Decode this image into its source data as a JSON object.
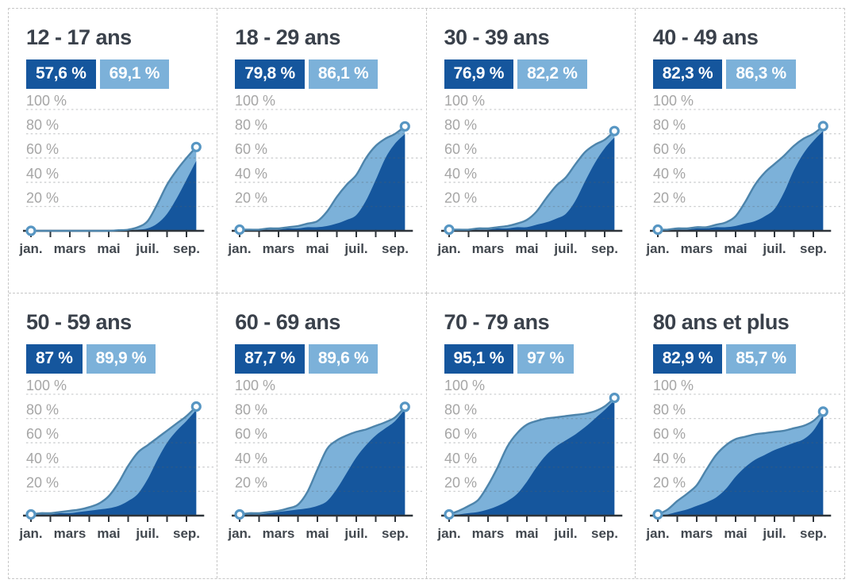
{
  "theme": {
    "dark_blue": "#15569d",
    "light_blue": "#7cb1d9",
    "light_line": "#4d84ab",
    "marker_ring": "#5796c3",
    "marker_fill": "#ffffff",
    "grid_line": "rgba(90,95,100,0.30)",
    "axis_line": "#2f353b",
    "y_label_color": "#a6a6a6",
    "x_label_color": "#42484f",
    "title_color": "#3a414b",
    "border_dash": "#c7c7c7"
  },
  "axis": {
    "y_ticks": [
      {
        "value": 100,
        "label": "100 %"
      },
      {
        "value": 80,
        "label": "80 %"
      },
      {
        "value": 60,
        "label": "60 %"
      },
      {
        "value": 40,
        "label": "40 %"
      },
      {
        "value": 20,
        "label": "20 %"
      }
    ],
    "x_ticks": [
      {
        "month": 0,
        "label": "jan."
      },
      {
        "month": 2,
        "label": "mars"
      },
      {
        "month": 4,
        "label": "mai"
      },
      {
        "month": 6,
        "label": "juil."
      },
      {
        "month": 8,
        "label": "sep."
      }
    ],
    "minor_tick_months": [
      0,
      1,
      2,
      3,
      4,
      5,
      6,
      7,
      8
    ]
  },
  "panels": [
    {
      "title": "12 - 17 ans",
      "badge_dark": "57,6 %",
      "badge_light": "69,1 %"
    },
    {
      "title": "18 - 29 ans",
      "badge_dark": "79,8 %",
      "badge_light": "86,1 %"
    },
    {
      "title": "30 - 39 ans",
      "badge_dark": "76,9 %",
      "badge_light": "82,2 %"
    },
    {
      "title": "40 - 49 ans",
      "badge_dark": "82,3 %",
      "badge_light": "86,3 %"
    },
    {
      "title": "50 - 59 ans",
      "badge_dark": "87 %",
      "badge_light": "89,9 %"
    },
    {
      "title": "60 - 69 ans",
      "badge_dark": "87,7 %",
      "badge_light": "89,6 %"
    },
    {
      "title": "70 - 79 ans",
      "badge_dark": "95,1 %",
      "badge_light": "97 %"
    },
    {
      "title": "80 ans et plus",
      "badge_dark": "82,9 %",
      "badge_light": "85,7 %"
    }
  ],
  "chart_data": [
    {
      "type": "area",
      "title": "12 - 17 ans",
      "ylim": [
        0,
        100
      ],
      "x_axis": "months jan.–sep., half-month steps",
      "x": [
        0,
        0.5,
        1,
        1.5,
        2,
        2.5,
        3,
        3.5,
        4,
        4.5,
        5,
        5.5,
        6,
        6.5,
        7,
        7.5,
        8,
        8.5
      ],
      "series": [
        {
          "name": "light-blue-area",
          "final_label": "69,1 %",
          "values": [
            0,
            0,
            0,
            0,
            0,
            0,
            0,
            0,
            0,
            0.5,
            1,
            3,
            8,
            22,
            38,
            50,
            60,
            69.1
          ]
        },
        {
          "name": "dark-blue-area",
          "final_label": "57,6 %",
          "values": [
            0,
            0,
            0,
            0,
            0,
            0,
            0,
            0,
            0,
            0,
            0,
            1,
            2,
            6,
            14,
            27,
            42,
            57.6
          ]
        }
      ]
    },
    {
      "type": "area",
      "title": "18 - 29 ans",
      "ylim": [
        0,
        100
      ],
      "x_axis": "months jan.–sep., half-month steps",
      "x": [
        0,
        0.5,
        1,
        1.5,
        2,
        2.5,
        3,
        3.5,
        4,
        4.5,
        5,
        5.5,
        6,
        6.5,
        7,
        7.5,
        8,
        8.5
      ],
      "series": [
        {
          "name": "light-blue-area",
          "final_label": "86,1 %",
          "values": [
            1,
            1,
            1,
            2,
            2,
            3,
            4,
            6,
            8,
            16,
            28,
            38,
            46,
            60,
            70,
            76,
            80,
            86.1
          ]
        },
        {
          "name": "dark-blue-area",
          "final_label": "79,8 %",
          "values": [
            0,
            0,
            1,
            1,
            1,
            2,
            2,
            3,
            3,
            4,
            6,
            9,
            13,
            25,
            42,
            60,
            72,
            79.8
          ]
        }
      ]
    },
    {
      "type": "area",
      "title": "30 - 39 ans",
      "ylim": [
        0,
        100
      ],
      "x_axis": "months jan.–sep., half-month steps",
      "x": [
        0,
        0.5,
        1,
        1.5,
        2,
        2.5,
        3,
        3.5,
        4,
        4.5,
        5,
        5.5,
        6,
        6.5,
        7,
        7.5,
        8,
        8.5
      ],
      "series": [
        {
          "name": "light-blue-area",
          "final_label": "82,2 %",
          "values": [
            1,
            1,
            1,
            2,
            2,
            3,
            4,
            6,
            9,
            16,
            27,
            37,
            44,
            55,
            65,
            71,
            75,
            82.2
          ]
        },
        {
          "name": "dark-blue-area",
          "final_label": "76,9 %",
          "values": [
            0,
            0,
            1,
            1,
            1,
            2,
            2,
            3,
            3,
            5,
            7,
            10,
            14,
            25,
            41,
            56,
            68,
            76.9
          ]
        }
      ]
    },
    {
      "type": "area",
      "title": "40 - 49 ans",
      "ylim": [
        0,
        100
      ],
      "x_axis": "months jan.–sep., half-month steps",
      "x": [
        0,
        0.5,
        1,
        1.5,
        2,
        2.5,
        3,
        3.5,
        4,
        4.5,
        5,
        5.5,
        6,
        6.5,
        7,
        7.5,
        8,
        8.5
      ],
      "series": [
        {
          "name": "light-blue-area",
          "final_label": "86,3 %",
          "values": [
            1,
            1,
            2,
            2,
            3,
            3,
            5,
            7,
            12,
            24,
            38,
            48,
            55,
            62,
            70,
            76,
            80,
            86.3
          ]
        },
        {
          "name": "dark-blue-area",
          "final_label": "82,3 %",
          "values": [
            0,
            0,
            1,
            1,
            2,
            2,
            3,
            3,
            4,
            6,
            8,
            12,
            18,
            32,
            50,
            64,
            74,
            82.3
          ]
        }
      ]
    },
    {
      "type": "area",
      "title": "50 - 59 ans",
      "ylim": [
        0,
        100
      ],
      "x_axis": "months jan.–sep., half-month steps",
      "x": [
        0,
        0.5,
        1,
        1.5,
        2,
        2.5,
        3,
        3.5,
        4,
        4.5,
        5,
        5.5,
        6,
        6.5,
        7,
        7.5,
        8,
        8.5
      ],
      "series": [
        {
          "name": "light-blue-area",
          "final_label": "89,9 %",
          "values": [
            1,
            2,
            2,
            3,
            4,
            5,
            7,
            10,
            16,
            27,
            41,
            52,
            58,
            64,
            70,
            76,
            82,
            89.9
          ]
        },
        {
          "name": "dark-blue-area",
          "final_label": "87 %",
          "values": [
            0,
            1,
            1,
            2,
            2,
            3,
            4,
            5,
            6,
            8,
            12,
            18,
            30,
            46,
            60,
            70,
            78,
            87
          ]
        }
      ]
    },
    {
      "type": "area",
      "title": "60 - 69 ans",
      "ylim": [
        0,
        100
      ],
      "x_axis": "months jan.–sep., half-month steps",
      "x": [
        0,
        0.5,
        1,
        1.5,
        2,
        2.5,
        3,
        3.5,
        4,
        4.5,
        5,
        5.5,
        6,
        6.5,
        7,
        7.5,
        8,
        8.5
      ],
      "series": [
        {
          "name": "light-blue-area",
          "final_label": "89,6 %",
          "values": [
            1,
            2,
            2,
            3,
            4,
            6,
            9,
            20,
            38,
            55,
            62,
            66,
            69,
            71,
            74,
            77,
            81,
            89.6
          ]
        },
        {
          "name": "dark-blue-area",
          "final_label": "87,7 %",
          "values": [
            0,
            1,
            1,
            2,
            3,
            4,
            5,
            6,
            8,
            12,
            22,
            35,
            48,
            58,
            66,
            72,
            78,
            87.7
          ]
        }
      ]
    },
    {
      "type": "area",
      "title": "70 - 79 ans",
      "ylim": [
        0,
        100
      ],
      "x_axis": "months jan.–sep., half-month steps",
      "x": [
        0,
        0.5,
        1,
        1.5,
        2,
        2.5,
        3,
        3.5,
        4,
        4.5,
        5,
        5.5,
        6,
        6.5,
        7,
        7.5,
        8,
        8.5
      ],
      "series": [
        {
          "name": "light-blue-area",
          "final_label": "97 %",
          "values": [
            1,
            4,
            8,
            13,
            25,
            40,
            57,
            68,
            75,
            78,
            80,
            81,
            82,
            83,
            84,
            86,
            90,
            97
          ]
        },
        {
          "name": "dark-blue-area",
          "final_label": "95,1 %",
          "values": [
            0,
            1,
            2,
            3,
            5,
            8,
            12,
            18,
            28,
            40,
            50,
            57,
            62,
            67,
            73,
            80,
            87,
            95.1
          ]
        }
      ]
    },
    {
      "type": "area",
      "title": "80 ans et plus",
      "ylim": [
        0,
        100
      ],
      "x_axis": "months jan.–sep., half-month steps",
      "x": [
        0,
        0.5,
        1,
        1.5,
        2,
        2.5,
        3,
        3.5,
        4,
        4.5,
        5,
        5.5,
        6,
        6.5,
        7,
        7.5,
        8,
        8.5
      ],
      "series": [
        {
          "name": "light-blue-area",
          "final_label": "85,7 %",
          "values": [
            1,
            5,
            12,
            18,
            25,
            38,
            50,
            58,
            63,
            65,
            67,
            68,
            69,
            70,
            72,
            74,
            78,
            85.7
          ]
        },
        {
          "name": "dark-blue-area",
          "final_label": "82,9 %",
          "values": [
            0,
            1,
            3,
            5,
            8,
            11,
            15,
            22,
            32,
            40,
            46,
            50,
            54,
            57,
            60,
            63,
            70,
            82.9
          ]
        }
      ]
    }
  ]
}
